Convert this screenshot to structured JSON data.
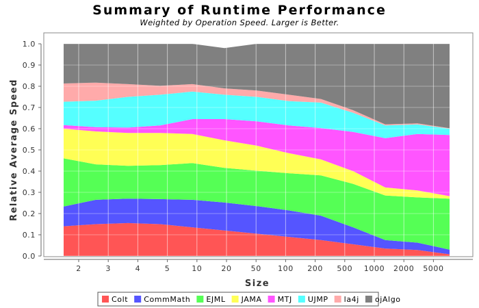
{
  "chart_data": {
    "type": "area",
    "stacked": true,
    "title": "Summary of Runtime Performance",
    "subtitle": "Weighted by Operation Speed. Larger is Better.",
    "xlabel": "Size",
    "ylabel": "Relative Average Speed",
    "ylim": [
      0,
      1.0
    ],
    "yticks": [
      "0.0",
      "0.1",
      "0.2",
      "0.3",
      "0.4",
      "0.5",
      "0.6",
      "0.7",
      "0.8",
      "0.9",
      "1.0"
    ],
    "categories": [
      "2",
      "3",
      "4",
      "5",
      "10",
      "20",
      "50",
      "100",
      "200",
      "500",
      "1000",
      "2000",
      "5000"
    ],
    "grid": true,
    "legend_position": "bottom",
    "series": [
      {
        "name": "Colt",
        "color": "#ff5555",
        "values": [
          0.14,
          0.15,
          0.155,
          0.15,
          0.135,
          0.12,
          0.105,
          0.09,
          0.075,
          0.055,
          0.035,
          0.028,
          0.008
        ]
      },
      {
        "name": "CommMath",
        "color": "#5555ff",
        "values": [
          0.093,
          0.115,
          0.115,
          0.118,
          0.13,
          0.132,
          0.13,
          0.125,
          0.115,
          0.08,
          0.04,
          0.035,
          0.022
        ]
      },
      {
        "name": "EJML",
        "color": "#55ff55",
        "values": [
          0.227,
          0.167,
          0.155,
          0.16,
          0.173,
          0.163,
          0.167,
          0.175,
          0.19,
          0.205,
          0.21,
          0.213,
          0.24
        ]
      },
      {
        "name": "JAMA",
        "color": "#ffff55",
        "values": [
          0.14,
          0.155,
          0.155,
          0.152,
          0.137,
          0.13,
          0.118,
          0.095,
          0.075,
          0.06,
          0.038,
          0.033,
          0.012
        ]
      },
      {
        "name": "MTJ",
        "color": "#ff55ff",
        "values": [
          0.017,
          0.02,
          0.025,
          0.035,
          0.07,
          0.1,
          0.115,
          0.13,
          0.148,
          0.185,
          0.232,
          0.266,
          0.288
        ]
      },
      {
        "name": "UJMP",
        "color": "#55ffff",
        "values": [
          0.11,
          0.125,
          0.145,
          0.145,
          0.13,
          0.115,
          0.115,
          0.115,
          0.12,
          0.09,
          0.06,
          0.045,
          0.03
        ]
      },
      {
        "name": "la4j",
        "color": "#ffaaaa",
        "values": [
          0.086,
          0.085,
          0.06,
          0.042,
          0.035,
          0.03,
          0.03,
          0.03,
          0.017,
          0.012,
          0.005,
          0.005,
          0.002
        ]
      },
      {
        "name": "ojAlgo",
        "color": "#808080",
        "values": [
          0.187,
          0.183,
          0.19,
          0.198,
          0.19,
          0.19,
          0.22,
          0.24,
          0.26,
          0.313,
          0.38,
          0.375,
          0.398
        ]
      }
    ]
  }
}
